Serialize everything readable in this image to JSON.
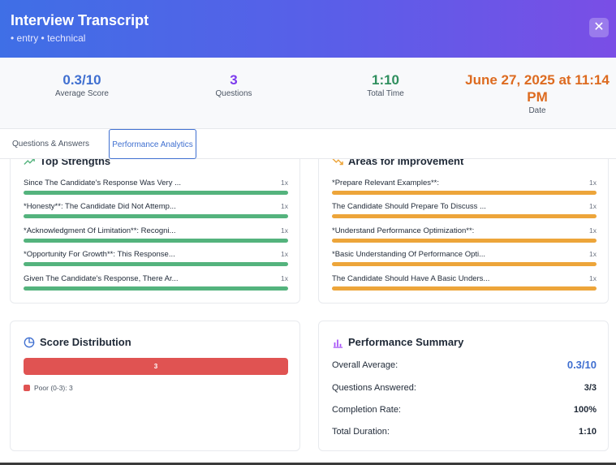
{
  "header": {
    "title": "Interview Transcript",
    "subtitle": "• entry • technical",
    "close_label": "✕"
  },
  "stats": [
    {
      "value": "0.3/10",
      "label": "Average Score"
    },
    {
      "value": "3",
      "label": "Questions"
    },
    {
      "value": "1:10",
      "label": "Total Time"
    },
    {
      "value": "June 27, 2025 at 11:14 PM",
      "label": "Date"
    }
  ],
  "tabs": {
    "qa": "Questions & Answers",
    "analytics": "Performance Analytics"
  },
  "strengths": {
    "title": "Top Strengths",
    "items": [
      {
        "text": "Since The Candidate's Response Was Very ...",
        "count": "1x"
      },
      {
        "text": "*Honesty**: The Candidate Did Not Attemp...",
        "count": "1x"
      },
      {
        "text": "*Acknowledgment Of Limitation**: Recogni...",
        "count": "1x"
      },
      {
        "text": "*Opportunity For Growth**: This Response...",
        "count": "1x"
      },
      {
        "text": "Given The Candidate's Response, There Ar...",
        "count": "1x"
      }
    ]
  },
  "improvements": {
    "title": "Areas for Improvement",
    "items": [
      {
        "text": "*Prepare Relevant Examples**:",
        "count": "1x"
      },
      {
        "text": "The Candidate Should Prepare To Discuss ...",
        "count": "1x"
      },
      {
        "text": "*Understand Performance Optimization**:",
        "count": "1x"
      },
      {
        "text": "*Basic Understanding Of Performance Opti...",
        "count": "1x"
      },
      {
        "text": "The Candidate Should Have A Basic Unders...",
        "count": "1x"
      }
    ]
  },
  "distribution": {
    "title": "Score Distribution",
    "bar_value": "3",
    "legend": "Poor (0-3): 3",
    "color": "#e05352"
  },
  "summary": {
    "title": "Performance Summary",
    "rows": [
      {
        "key": "Overall Average:",
        "value": "0.3/10"
      },
      {
        "key": "Questions Answered:",
        "value": "3/3"
      },
      {
        "key": "Completion Rate:",
        "value": "100%"
      },
      {
        "key": "Total Duration:",
        "value": "1:10"
      }
    ]
  },
  "colors": {
    "accent_blue": "#3f6fd0",
    "strength_green": "#54b37d",
    "improve_orange": "#eda53a"
  },
  "icons": {
    "strengths": "trending-up-icon",
    "improvements": "trending-down-icon",
    "distribution": "pie-chart-icon",
    "summary": "bar-chart-icon"
  }
}
